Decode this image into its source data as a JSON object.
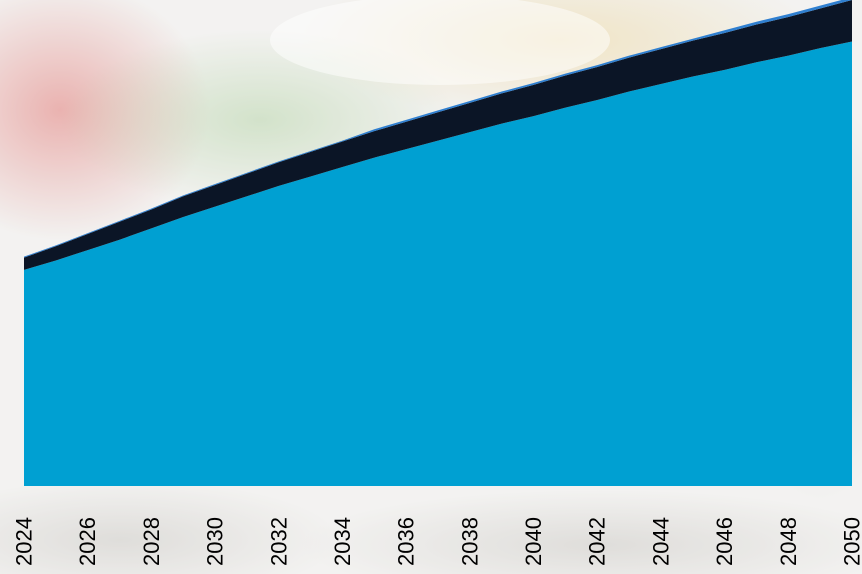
{
  "chart_data": {
    "type": "area",
    "stacked": true,
    "x": [
      2024,
      2025,
      2026,
      2027,
      2028,
      2029,
      2030,
      2031,
      2032,
      2033,
      2034,
      2035,
      2036,
      2037,
      2038,
      2039,
      2040,
      2041,
      2042,
      2043,
      2044,
      2045,
      2046,
      2047,
      2048,
      2049,
      2050
    ],
    "tick_labels": [
      "2024",
      "2026",
      "2028",
      "2030",
      "2032",
      "2034",
      "2036",
      "2038",
      "2040",
      "2042",
      "2044",
      "2046",
      "2048",
      "2050"
    ],
    "series": [
      {
        "color": "#00a0d2",
        "values": [
          229,
          239,
          250,
          261,
          273,
          285,
          296,
          307,
          318,
          328,
          338,
          348,
          357,
          366,
          375,
          384,
          392,
          401,
          409,
          418,
          426,
          434,
          441,
          449,
          456,
          464,
          471
        ]
      },
      {
        "color": "#0b1526",
        "values": [
          13,
          15,
          17,
          19,
          20,
          22,
          23,
          24,
          25,
          26,
          27,
          28,
          29,
          30,
          31,
          32,
          33,
          34,
          35,
          36,
          37,
          38,
          39,
          40,
          41,
          42,
          44
        ]
      },
      {
        "color": "#2f7fd0",
        "values": [
          1,
          1,
          1,
          1,
          1,
          1,
          1,
          1,
          1,
          1,
          1,
          2,
          2,
          2,
          2,
          2,
          2,
          2,
          2,
          2,
          2,
          2,
          3,
          3,
          3,
          3,
          3
        ]
      }
    ],
    "ylim": [
      0,
      515
    ],
    "grid": false,
    "legend": "none"
  }
}
